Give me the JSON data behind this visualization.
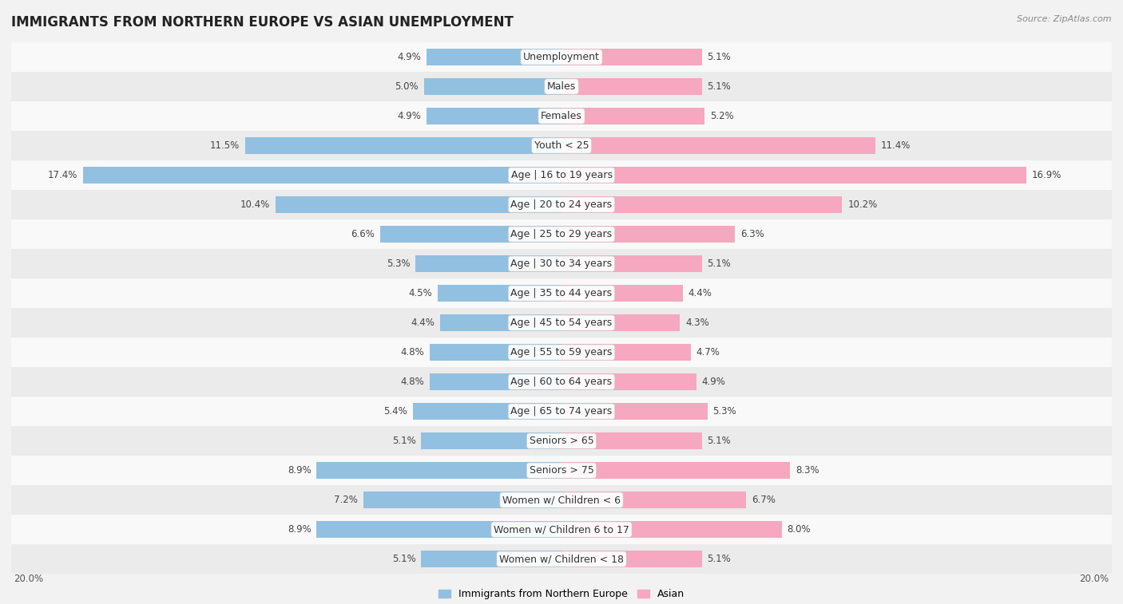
{
  "title": "IMMIGRANTS FROM NORTHERN EUROPE VS ASIAN UNEMPLOYMENT",
  "source": "Source: ZipAtlas.com",
  "categories": [
    "Unemployment",
    "Males",
    "Females",
    "Youth < 25",
    "Age | 16 to 19 years",
    "Age | 20 to 24 years",
    "Age | 25 to 29 years",
    "Age | 30 to 34 years",
    "Age | 35 to 44 years",
    "Age | 45 to 54 years",
    "Age | 55 to 59 years",
    "Age | 60 to 64 years",
    "Age | 65 to 74 years",
    "Seniors > 65",
    "Seniors > 75",
    "Women w/ Children < 6",
    "Women w/ Children 6 to 17",
    "Women w/ Children < 18"
  ],
  "left_values": [
    4.9,
    5.0,
    4.9,
    11.5,
    17.4,
    10.4,
    6.6,
    5.3,
    4.5,
    4.4,
    4.8,
    4.8,
    5.4,
    5.1,
    8.9,
    7.2,
    8.9,
    5.1
  ],
  "right_values": [
    5.1,
    5.1,
    5.2,
    11.4,
    16.9,
    10.2,
    6.3,
    5.1,
    4.4,
    4.3,
    4.7,
    4.9,
    5.3,
    5.1,
    8.3,
    6.7,
    8.0,
    5.1
  ],
  "left_color": "#92c0e0",
  "right_color": "#f5a8bf",
  "left_color_highlight": "#5b9fd4",
  "right_color_highlight": "#f07099",
  "left_label": "Immigrants from Northern Europe",
  "right_label": "Asian",
  "xlim": 20.0,
  "background_color": "#f2f2f2",
  "row_color_light": "#f9f9f9",
  "row_color_dark": "#ebebeb",
  "title_fontsize": 12,
  "label_fontsize": 9,
  "value_fontsize": 8.5,
  "bar_height": 0.55
}
